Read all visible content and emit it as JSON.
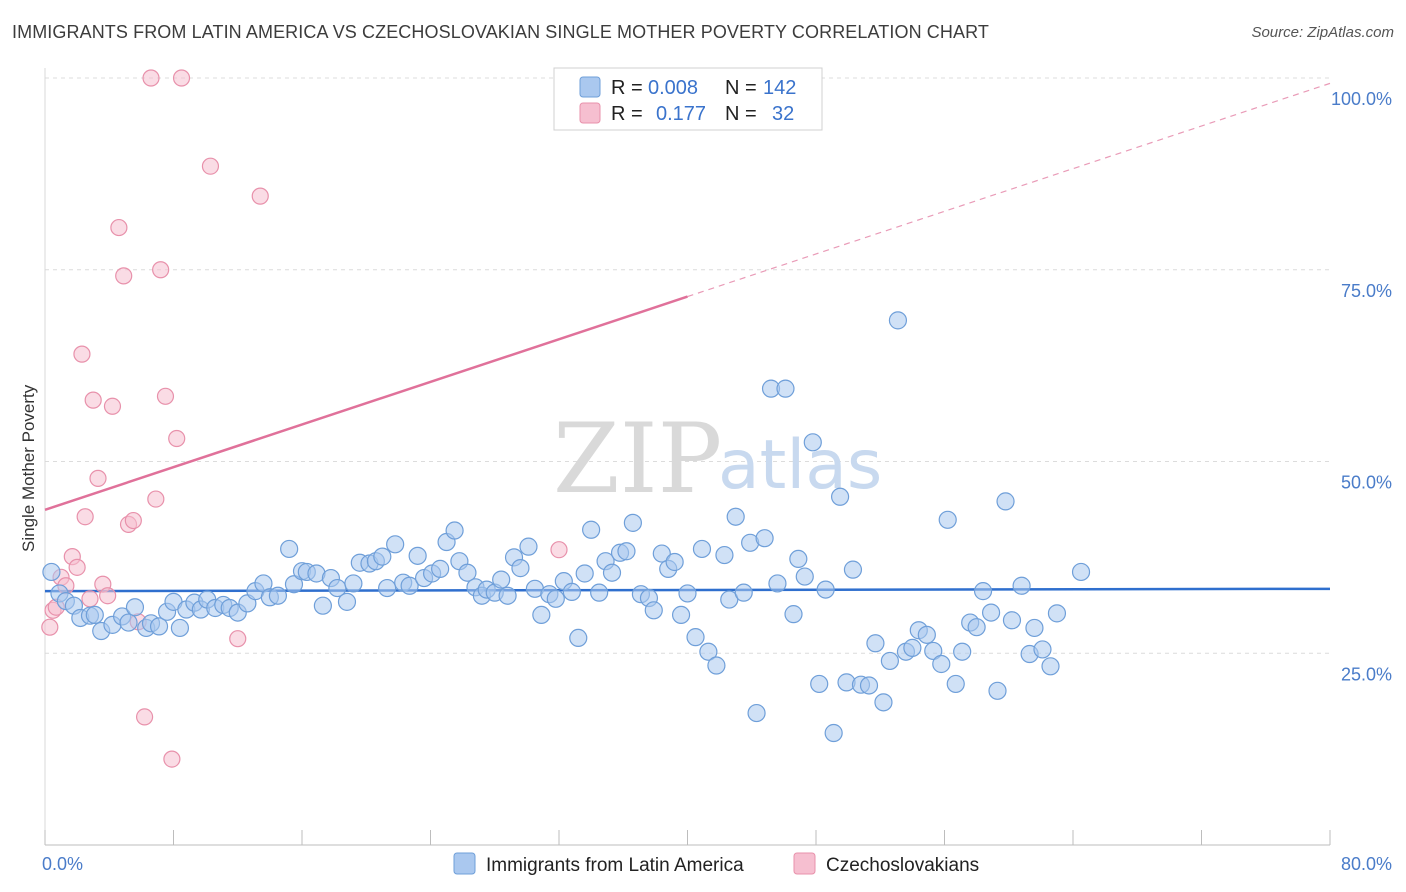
{
  "title": "IMMIGRANTS FROM LATIN AMERICA VS CZECHOSLOVAKIAN SINGLE MOTHER POVERTY CORRELATION CHART",
  "source": "Source: ZipAtlas.com",
  "watermark": {
    "zip": "ZIP",
    "atlas": "atlas"
  },
  "colors": {
    "blue_fill": "#aac8ef",
    "blue_stroke": "#6f9fd9",
    "blue_line": "#2f6fce",
    "pink_fill": "#f6bfd0",
    "pink_stroke": "#e891ab",
    "pink_line": "#e0719a",
    "grid": "#dcdcdc",
    "axis_text": "#4a7cc9"
  },
  "legend": {
    "rows": [
      {
        "r_label": "R =",
        "r_value": "0.008",
        "n_label": "N =",
        "n_value": "142"
      },
      {
        "r_label": "R =",
        "r_value": "0.177",
        "n_label": "N =",
        "n_value": "32"
      }
    ]
  },
  "bottom_legend": [
    "Immigrants from Latin America",
    "Czechoslovakians"
  ],
  "chart_data": {
    "type": "scatter",
    "title": "IMMIGRANTS FROM LATIN AMERICA VS CZECHOSLOVAKIAN SINGLE MOTHER POVERTY CORRELATION CHART",
    "xlabel": "",
    "ylabel": "Single Mother Poverty",
    "xlim": [
      0,
      80
    ],
    "ylim": [
      0,
      100
    ],
    "x_tick_labels": [
      "0.0%",
      "80.0%"
    ],
    "y_tick_labels": [
      "25.0%",
      "50.0%",
      "75.0%",
      "100.0%"
    ],
    "y_ticks": [
      25,
      50,
      75,
      100
    ],
    "grid": true,
    "legend_placement": "top-center",
    "series": [
      {
        "name": "Immigrants from Latin America",
        "r": 0.008,
        "n": 142,
        "trend": {
          "x": [
            0,
            80
          ],
          "y": [
            33.1,
            33.4
          ],
          "dashed_extension": false
        },
        "points": [
          [
            0.4,
            35.6
          ],
          [
            0.9,
            32.8
          ],
          [
            1.3,
            31.8
          ],
          [
            1.8,
            31.2
          ],
          [
            2.2,
            29.6
          ],
          [
            2.8,
            29.9
          ],
          [
            3.1,
            30.0
          ],
          [
            3.5,
            27.9
          ],
          [
            4.2,
            28.7
          ],
          [
            4.8,
            29.8
          ],
          [
            5.2,
            29.0
          ],
          [
            5.6,
            31.0
          ],
          [
            6.3,
            28.3
          ],
          [
            6.6,
            28.9
          ],
          [
            7.1,
            28.5
          ],
          [
            7.6,
            30.4
          ],
          [
            8.0,
            31.7
          ],
          [
            8.4,
            28.3
          ],
          [
            8.8,
            30.7
          ],
          [
            9.3,
            31.6
          ],
          [
            9.7,
            30.7
          ],
          [
            10.1,
            32.0
          ],
          [
            10.6,
            30.9
          ],
          [
            11.1,
            31.3
          ],
          [
            11.5,
            30.9
          ],
          [
            12.0,
            30.3
          ],
          [
            12.6,
            31.5
          ],
          [
            13.1,
            33.1
          ],
          [
            13.6,
            34.1
          ],
          [
            14.0,
            32.3
          ],
          [
            14.5,
            32.5
          ],
          [
            15.2,
            38.6
          ],
          [
            15.5,
            34.0
          ],
          [
            16.0,
            35.7
          ],
          [
            16.3,
            35.6
          ],
          [
            16.9,
            35.4
          ],
          [
            17.3,
            31.2
          ],
          [
            17.8,
            34.8
          ],
          [
            18.2,
            33.5
          ],
          [
            18.8,
            31.7
          ],
          [
            19.2,
            34.1
          ],
          [
            19.6,
            36.8
          ],
          [
            20.2,
            36.7
          ],
          [
            20.6,
            37.0
          ],
          [
            21.0,
            37.6
          ],
          [
            21.3,
            33.5
          ],
          [
            21.8,
            39.2
          ],
          [
            22.3,
            34.2
          ],
          [
            22.7,
            33.8
          ],
          [
            23.2,
            37.7
          ],
          [
            23.6,
            34.8
          ],
          [
            24.1,
            35.4
          ],
          [
            24.6,
            36.0
          ],
          [
            25.0,
            39.5
          ],
          [
            25.5,
            41.0
          ],
          [
            25.8,
            37.0
          ],
          [
            26.3,
            35.5
          ],
          [
            26.8,
            33.6
          ],
          [
            27.2,
            32.5
          ],
          [
            27.5,
            33.3
          ],
          [
            28.0,
            32.9
          ],
          [
            28.4,
            34.6
          ],
          [
            28.8,
            32.5
          ],
          [
            29.2,
            37.5
          ],
          [
            29.6,
            36.1
          ],
          [
            30.1,
            38.9
          ],
          [
            30.5,
            33.4
          ],
          [
            30.9,
            30.0
          ],
          [
            31.4,
            32.7
          ],
          [
            31.8,
            32.1
          ],
          [
            32.3,
            34.4
          ],
          [
            32.8,
            33.0
          ],
          [
            33.2,
            27.0
          ],
          [
            33.6,
            35.4
          ],
          [
            34.0,
            41.1
          ],
          [
            34.5,
            32.9
          ],
          [
            34.9,
            37.0
          ],
          [
            35.3,
            35.5
          ],
          [
            35.8,
            38.1
          ],
          [
            36.2,
            38.3
          ],
          [
            36.6,
            42.0
          ],
          [
            37.1,
            32.7
          ],
          [
            37.6,
            32.2
          ],
          [
            37.9,
            30.6
          ],
          [
            38.4,
            38.0
          ],
          [
            38.8,
            36.0
          ],
          [
            39.2,
            36.9
          ],
          [
            39.6,
            30.0
          ],
          [
            40.0,
            32.8
          ],
          [
            40.5,
            27.1
          ],
          [
            40.9,
            38.6
          ],
          [
            41.3,
            25.2
          ],
          [
            41.8,
            23.4
          ],
          [
            42.3,
            37.8
          ],
          [
            42.6,
            32.0
          ],
          [
            43.0,
            42.8
          ],
          [
            43.5,
            32.9
          ],
          [
            43.9,
            39.4
          ],
          [
            44.3,
            17.2
          ],
          [
            44.8,
            40.0
          ],
          [
            45.2,
            59.5
          ],
          [
            45.6,
            34.1
          ],
          [
            46.1,
            59.5
          ],
          [
            46.6,
            30.1
          ],
          [
            46.9,
            37.3
          ],
          [
            47.3,
            35.0
          ],
          [
            47.8,
            52.5
          ],
          [
            48.2,
            21.0
          ],
          [
            48.6,
            33.3
          ],
          [
            49.1,
            14.6
          ],
          [
            49.5,
            45.4
          ],
          [
            49.9,
            21.2
          ],
          [
            50.3,
            35.9
          ],
          [
            50.8,
            20.9
          ],
          [
            51.3,
            20.8
          ],
          [
            51.7,
            26.3
          ],
          [
            52.2,
            18.6
          ],
          [
            52.6,
            24.0
          ],
          [
            53.1,
            68.4
          ],
          [
            53.6,
            25.2
          ],
          [
            54.0,
            25.7
          ],
          [
            54.4,
            28.0
          ],
          [
            54.9,
            27.4
          ],
          [
            55.3,
            25.3
          ],
          [
            55.8,
            23.6
          ],
          [
            56.2,
            42.4
          ],
          [
            56.7,
            21.0
          ],
          [
            57.1,
            25.2
          ],
          [
            57.6,
            29.0
          ],
          [
            58.0,
            28.4
          ],
          [
            58.4,
            33.1
          ],
          [
            58.9,
            30.3
          ],
          [
            59.3,
            20.1
          ],
          [
            59.8,
            44.8
          ],
          [
            60.2,
            29.3
          ],
          [
            60.8,
            33.8
          ],
          [
            61.3,
            24.9
          ],
          [
            61.6,
            28.3
          ],
          [
            62.1,
            25.5
          ],
          [
            62.6,
            23.3
          ],
          [
            63.0,
            30.2
          ],
          [
            64.5,
            35.6
          ]
        ]
      },
      {
        "name": "Czechoslovakians",
        "r": 0.177,
        "n": 32,
        "trend": {
          "x": [
            0,
            80
          ],
          "y": [
            43.7,
            99.3
          ],
          "solid_until_x": 40,
          "dashed_extension": true
        },
        "points": [
          [
            0.3,
            28.4
          ],
          [
            0.5,
            30.6
          ],
          [
            0.7,
            31.0
          ],
          [
            1.0,
            34.9
          ],
          [
            1.3,
            33.8
          ],
          [
            1.7,
            37.6
          ],
          [
            2.0,
            36.2
          ],
          [
            2.5,
            42.8
          ],
          [
            2.8,
            32.1
          ],
          [
            3.3,
            47.8
          ],
          [
            3.6,
            34.0
          ],
          [
            3.9,
            32.5
          ],
          [
            4.2,
            57.2
          ],
          [
            4.6,
            80.5
          ],
          [
            4.9,
            74.2
          ],
          [
            5.2,
            41.8
          ],
          [
            5.5,
            42.3
          ],
          [
            5.8,
            29.1
          ],
          [
            6.2,
            16.7
          ],
          [
            6.6,
            100.0
          ],
          [
            6.9,
            45.1
          ],
          [
            7.2,
            75.0
          ],
          [
            7.5,
            58.5
          ],
          [
            7.9,
            11.2
          ],
          [
            8.2,
            53.0
          ],
          [
            8.5,
            100.0
          ],
          [
            10.3,
            88.5
          ],
          [
            13.4,
            84.6
          ],
          [
            2.3,
            64.0
          ],
          [
            3.0,
            58.0
          ],
          [
            12.0,
            26.9
          ],
          [
            32.0,
            38.5
          ]
        ]
      }
    ]
  }
}
